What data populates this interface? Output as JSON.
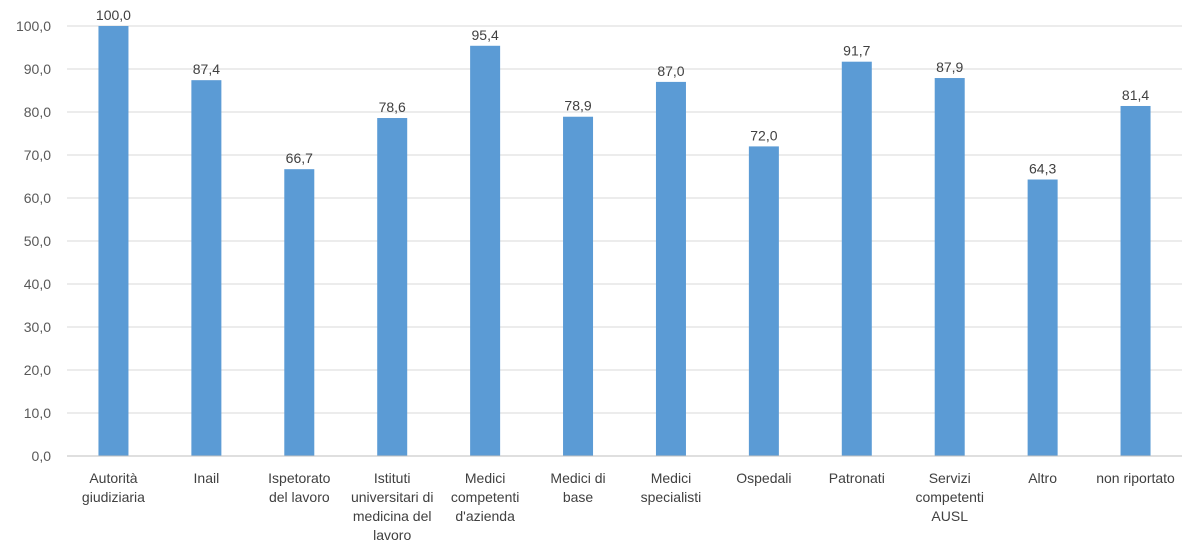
{
  "chart_data": {
    "type": "bar",
    "categories": [
      "Autorità giudiziaria",
      "Inail",
      "Ispetorato del lavoro",
      "Istituti universitari di medicina del lavoro",
      "Medici competenti d'azienda",
      "Medici di base",
      "Medici specialisti",
      "Ospedali",
      "Patronati",
      "Servizi competenti AUSL",
      "Altro",
      "non riportato"
    ],
    "category_lines": [
      [
        "Autorità",
        "giudiziaria"
      ],
      [
        "Inail"
      ],
      [
        "Ispetorato",
        "del lavoro"
      ],
      [
        "Istituti",
        "universitari di",
        "medicina del",
        "lavoro"
      ],
      [
        "Medici",
        "competenti",
        "d'azienda"
      ],
      [
        "Medici di",
        "base"
      ],
      [
        "Medici",
        "specialisti"
      ],
      [
        "Ospedali"
      ],
      [
        "Patronati"
      ],
      [
        "Servizi",
        "competenti",
        "AUSL"
      ],
      [
        "Altro"
      ],
      [
        "non riportato"
      ]
    ],
    "values": [
      100.0,
      87.4,
      66.7,
      78.6,
      95.4,
      78.9,
      87.0,
      72.0,
      91.7,
      87.9,
      64.3,
      81.4
    ],
    "value_labels": [
      "100,0",
      "87,4",
      "66,7",
      "78,6",
      "95,4",
      "78,9",
      "87,0",
      "72,0",
      "91,7",
      "87,9",
      "64,3",
      "81,4"
    ],
    "y_ticks": [
      "0,0",
      "10,0",
      "20,0",
      "30,0",
      "40,0",
      "50,0",
      "60,0",
      "70,0",
      "80,0",
      "90,0",
      "100,0"
    ],
    "ylim": [
      0,
      100
    ],
    "y_step": 10,
    "title": "",
    "xlabel": "",
    "ylabel": "",
    "grid": true,
    "legend": "none",
    "bar_color": "#5b9bd5"
  }
}
